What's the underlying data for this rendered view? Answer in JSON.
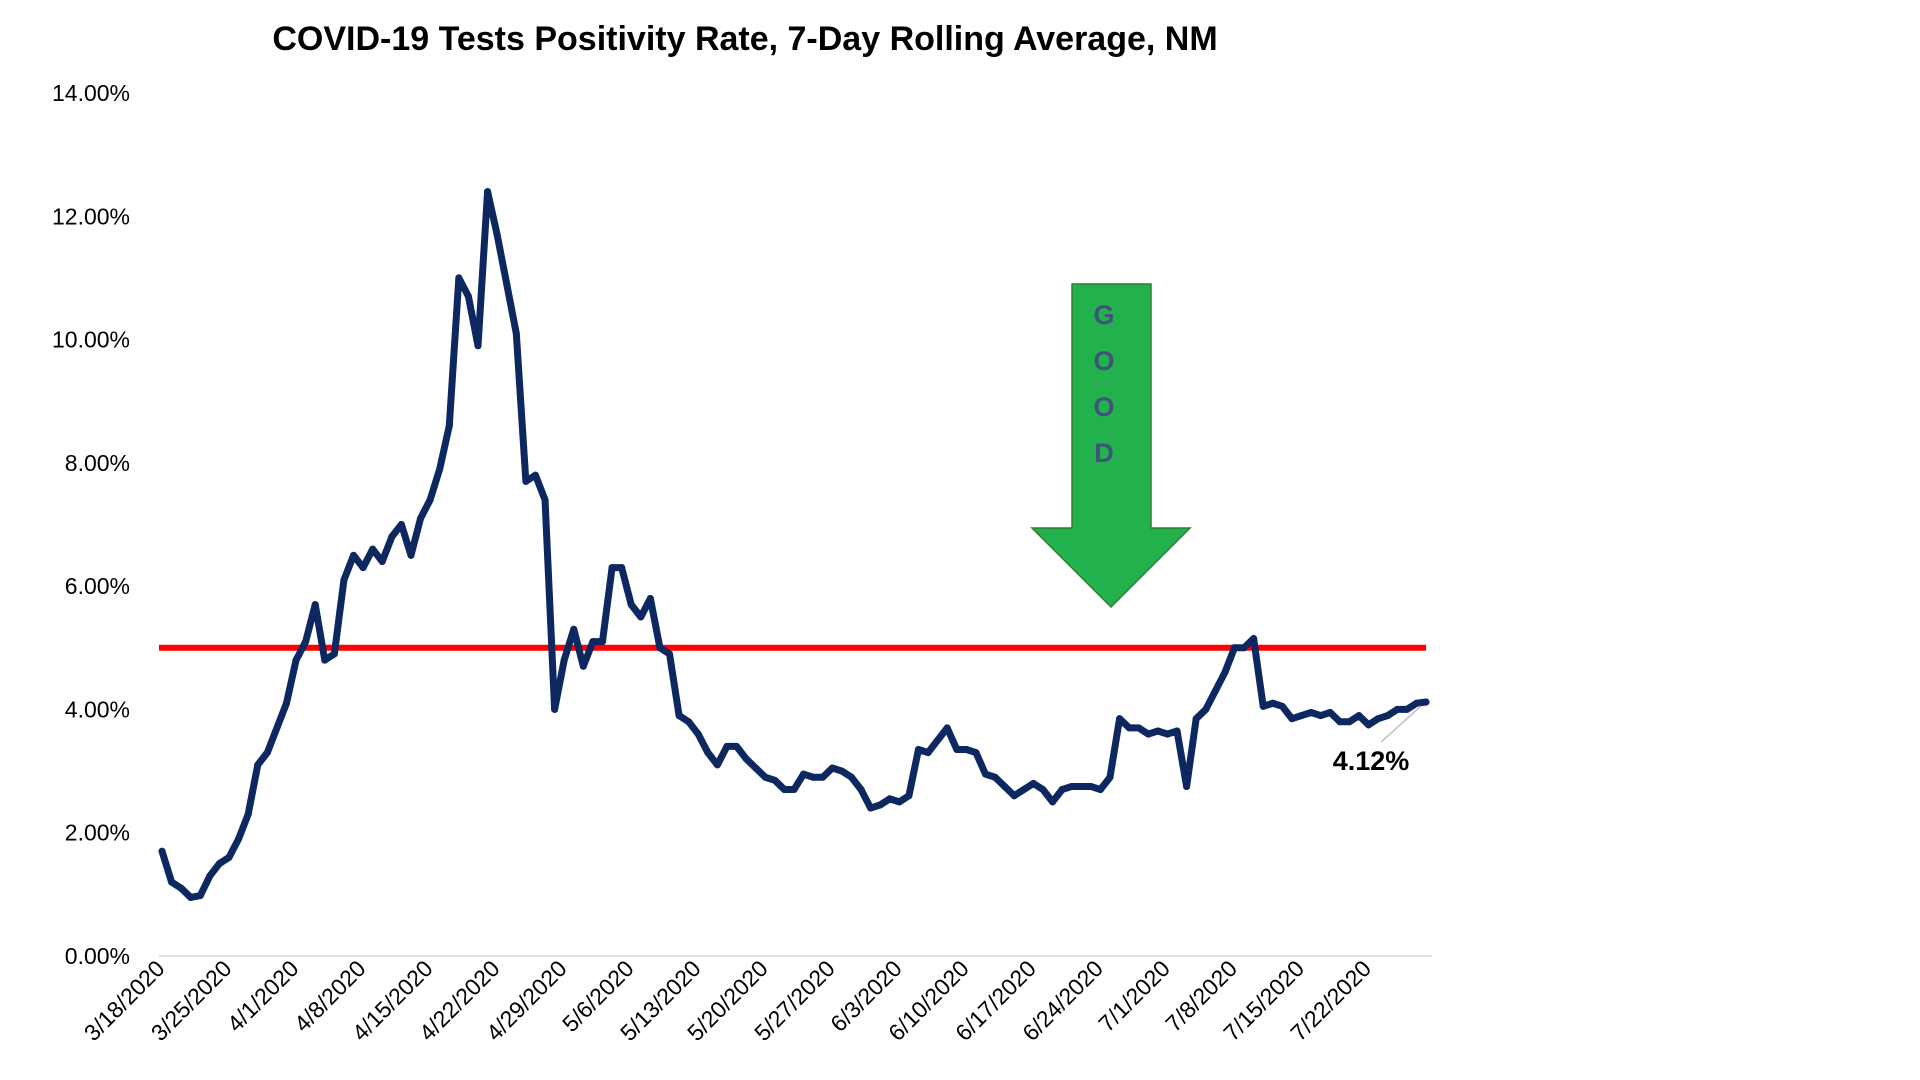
{
  "chart_data": {
    "type": "line",
    "title": "COVID-19 Tests Positivity Rate, 7-Day Rolling Average, NM",
    "xlabel": "",
    "ylabel": "",
    "ylim": [
      0,
      14
    ],
    "y_ticks": [
      0,
      2,
      4,
      6,
      8,
      10,
      12,
      14
    ],
    "y_tick_labels": [
      "0.00%",
      "2.00%",
      "4.00%",
      "6.00%",
      "8.00%",
      "10.00%",
      "12.00%",
      "14.00%"
    ],
    "x_tick_labels": [
      "3/18/2020",
      "3/25/2020",
      "4/1/2020",
      "4/8/2020",
      "4/15/2020",
      "4/22/2020",
      "4/29/2020",
      "5/6/2020",
      "5/13/2020",
      "5/20/2020",
      "5/27/2020",
      "6/3/2020",
      "6/10/2020",
      "6/17/2020",
      "6/24/2020",
      "7/1/2020",
      "7/8/2020",
      "7/15/2020",
      "7/22/2020"
    ],
    "series": [
      {
        "color": "#0d2860",
        "values": [
          1.7,
          1.2,
          1.1,
          0.95,
          0.98,
          1.3,
          1.5,
          1.6,
          1.9,
          2.3,
          3.1,
          3.3,
          3.7,
          4.1,
          4.8,
          5.1,
          5.7,
          4.8,
          4.9,
          6.1,
          6.5,
          6.3,
          6.6,
          6.4,
          6.8,
          7.0,
          6.5,
          7.1,
          7.4,
          7.9,
          8.6,
          11.0,
          10.7,
          9.9,
          12.4,
          11.7,
          10.9,
          10.1,
          7.7,
          7.8,
          7.4,
          4.0,
          4.8,
          5.3,
          4.7,
          5.1,
          5.1,
          6.3,
          6.3,
          5.7,
          5.5,
          5.8,
          5.0,
          4.9,
          3.9,
          3.8,
          3.6,
          3.3,
          3.1,
          3.4,
          3.4,
          3.2,
          3.05,
          2.9,
          2.85,
          2.7,
          2.7,
          2.95,
          2.9,
          2.9,
          3.05,
          3.0,
          2.9,
          2.7,
          2.4,
          2.45,
          2.55,
          2.5,
          2.6,
          3.35,
          3.3,
          3.5,
          3.7,
          3.35,
          3.35,
          3.3,
          2.95,
          2.9,
          2.75,
          2.6,
          2.7,
          2.8,
          2.7,
          2.5,
          2.7,
          2.75,
          2.75,
          2.75,
          2.7,
          2.9,
          3.85,
          3.7,
          3.7,
          3.6,
          3.65,
          3.6,
          3.65,
          2.75,
          3.85,
          4.0,
          4.3,
          4.6,
          5.0,
          5.0,
          5.15,
          4.05,
          4.1,
          4.05,
          3.85,
          3.9,
          3.95,
          3.9,
          3.95,
          3.8,
          3.8,
          3.9,
          3.75,
          3.85,
          3.9,
          4.0,
          4.0,
          4.1,
          4.12
        ]
      }
    ],
    "reference_line": {
      "value": 5.0,
      "color": "#ff0000"
    },
    "end_label": "4.12%",
    "annotation": {
      "text": "G O O D",
      "letters": [
        "G",
        "O",
        "O",
        "D"
      ],
      "color": "#22b14c"
    },
    "grid": false,
    "legend": "none"
  }
}
